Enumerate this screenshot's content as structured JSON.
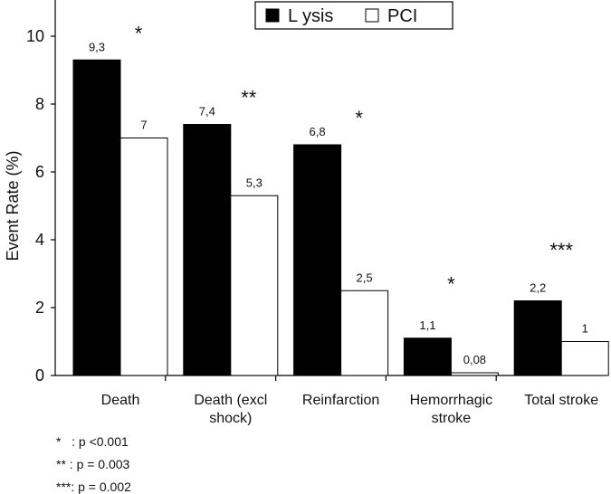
{
  "chart_data": {
    "type": "bar",
    "title": "",
    "xlabel": "",
    "ylabel": "Event Rate (%)",
    "ylim": [
      0,
      10
    ],
    "yticks": [
      "0",
      "2",
      "4",
      "6",
      "8",
      "10"
    ],
    "grid": false,
    "legend_position": "top-center",
    "categories": [
      [
        "Death"
      ],
      [
        "Death (excl",
        "shock)"
      ],
      [
        "Reinfarction"
      ],
      [
        "Hemorrhagic",
        "stroke"
      ],
      [
        "Total stroke"
      ]
    ],
    "series": [
      {
        "name": "L ysis",
        "color": "#000000",
        "values": [
          9.3,
          7.4,
          6.8,
          1.1,
          2.2
        ],
        "labels": [
          "9,3",
          "7,4",
          "6,8",
          "1,1",
          "2,2"
        ]
      },
      {
        "name": "PCI",
        "color": "#ffffff",
        "values": [
          7,
          5.3,
          2.5,
          0.08,
          1
        ],
        "labels": [
          "7",
          "5,3",
          "2,5",
          "0,08",
          "1"
        ]
      }
    ],
    "significance": [
      "*",
      "**",
      "*",
      "*",
      "***"
    ]
  },
  "footnotes": [
    "*   : p <0.001",
    "** : p = 0.003",
    "***: p = 0.002"
  ]
}
